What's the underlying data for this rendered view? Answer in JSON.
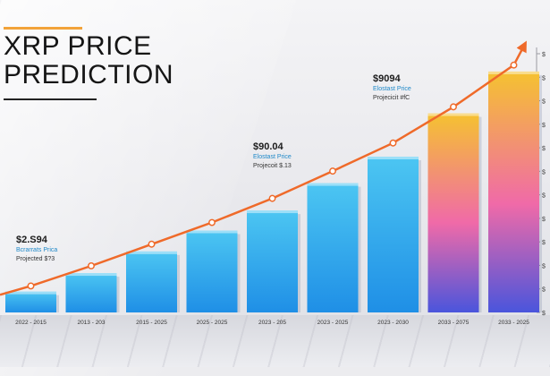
{
  "title": {
    "line1": "XRP PRICE",
    "line2": "PREDICTION"
  },
  "annotations": [
    {
      "price": "$2.S94",
      "sub": "Bcrarrats Prica",
      "proj": "Projected $?3"
    },
    {
      "price": "$90.04",
      "sub": "Elostast Price",
      "proj": "Projecoit $.13"
    },
    {
      "price": "$9094",
      "sub": "Elostast Price",
      "proj": "Projecicit #fC"
    }
  ],
  "chart_data": {
    "type": "bar",
    "title": "XRP PRICE PREDICTION",
    "categories": [
      "2022 - 2015",
      "2013 - 203",
      "2015 - 2025",
      "2025 - 2025",
      "2023 - 205",
      "2023 - 2025",
      "2023 - 2030",
      "2033 - 2075",
      "2033 - 2025"
    ],
    "values": [
      2.6,
      4.9,
      7.6,
      10.2,
      12.7,
      16.1,
      19.4,
      24.8,
      30.0
    ],
    "series": [
      {
        "values": [
          2.6,
          4.9,
          7.6,
          10.2,
          12.7,
          16.1,
          19.4,
          24.8,
          30.0
        ]
      }
    ],
    "trend_line": [
      3.3,
      5.8,
      8.5,
      11.2,
      14.2,
      17.6,
      21.1,
      25.6,
      30.8
    ],
    "y_tick_labels": [
      "$",
      "$",
      "$",
      "$",
      "$",
      "$",
      "$",
      "$",
      "$",
      "$",
      "$",
      "$"
    ],
    "ylim": [
      0,
      33
    ],
    "grid": false,
    "xlabel": "",
    "ylabel": "",
    "colors": {
      "bar_blue_top": "#4cc6f2",
      "bar_blue_bottom": "#1f8fe6",
      "gradient_top": "#f5c230",
      "gradient_mid": "#f06aa8",
      "gradient_bottom": "#4a55dc",
      "trend": "#ef6a2a"
    }
  }
}
